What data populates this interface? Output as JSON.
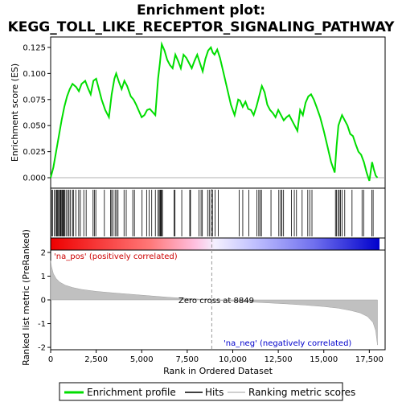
{
  "chart_data": {
    "type": "line",
    "title_line1": "Enrichment plot:",
    "title_line2": "KEGG_TOLL_LIKE_RECEPTOR_SIGNALING_PATHWAY",
    "es_panel": {
      "ylabel": "Enrichment score (ES)",
      "ylim": [
        -0.01,
        0.135
      ],
      "yticks": [
        0.0,
        0.025,
        0.05,
        0.075,
        0.1,
        0.125
      ],
      "ytick_labels": [
        "0.000",
        "0.025",
        "0.050",
        "0.075",
        "0.100",
        "0.125"
      ],
      "line_color": "#00dd00",
      "x": [
        0,
        150,
        300,
        450,
        600,
        750,
        900,
        1050,
        1200,
        1400,
        1550,
        1700,
        1900,
        2050,
        2200,
        2350,
        2500,
        2650,
        2800,
        3000,
        3200,
        3350,
        3500,
        3600,
        3750,
        3900,
        4050,
        4200,
        4400,
        4550,
        4700,
        4850,
        5000,
        5150,
        5300,
        5450,
        5600,
        5750,
        5900,
        6000,
        6100,
        6250,
        6400,
        6550,
        6700,
        6850,
        7000,
        7150,
        7300,
        7450,
        7600,
        7750,
        7900,
        8050,
        8200,
        8350,
        8500,
        8650,
        8800,
        8900,
        9000,
        9150,
        9300,
        9500,
        9700,
        9900,
        10100,
        10300,
        10400,
        10550,
        10700,
        10850,
        11000,
        11150,
        11300,
        11450,
        11600,
        11750,
        11900,
        12050,
        12200,
        12350,
        12500,
        12650,
        12800,
        12950,
        13100,
        13250,
        13400,
        13550,
        13700,
        13850,
        14000,
        14150,
        14300,
        14450,
        14600,
        14800,
        15000,
        15200,
        15400,
        15600,
        15700,
        15800,
        15900,
        16000,
        16150,
        16300,
        16450,
        16600,
        16750,
        16900,
        17050,
        17200,
        17350,
        17500,
        17650,
        17750,
        17850,
        17950
      ],
      "es": [
        0.0,
        0.01,
        0.025,
        0.04,
        0.055,
        0.068,
        0.078,
        0.085,
        0.09,
        0.087,
        0.083,
        0.09,
        0.093,
        0.086,
        0.08,
        0.093,
        0.095,
        0.085,
        0.075,
        0.065,
        0.058,
        0.08,
        0.095,
        0.1,
        0.092,
        0.085,
        0.093,
        0.088,
        0.078,
        0.075,
        0.07,
        0.064,
        0.058,
        0.06,
        0.065,
        0.066,
        0.063,
        0.06,
        0.095,
        0.11,
        0.128,
        0.122,
        0.113,
        0.108,
        0.105,
        0.118,
        0.112,
        0.105,
        0.118,
        0.115,
        0.11,
        0.105,
        0.112,
        0.118,
        0.11,
        0.102,
        0.114,
        0.122,
        0.125,
        0.12,
        0.118,
        0.123,
        0.115,
        0.1,
        0.085,
        0.07,
        0.06,
        0.075,
        0.074,
        0.068,
        0.073,
        0.066,
        0.065,
        0.06,
        0.068,
        0.078,
        0.088,
        0.082,
        0.07,
        0.065,
        0.062,
        0.058,
        0.065,
        0.06,
        0.055,
        0.058,
        0.06,
        0.055,
        0.05,
        0.045,
        0.065,
        0.06,
        0.072,
        0.078,
        0.08,
        0.075,
        0.068,
        0.058,
        0.045,
        0.03,
        0.015,
        0.005,
        0.03,
        0.05,
        0.055,
        0.06,
        0.055,
        0.05,
        0.042,
        0.04,
        0.032,
        0.025,
        0.022,
        0.015,
        0.005,
        -0.003,
        0.015,
        0.008,
        0.002,
        0.0
      ]
    },
    "hits": [
      60,
      100,
      200,
      280,
      330,
      380,
      430,
      480,
      530,
      560,
      610,
      650,
      690,
      730,
      780,
      850,
      950,
      1010,
      1090,
      1200,
      1250,
      1380,
      1540,
      1630,
      1820,
      1950,
      2330,
      2400,
      2480,
      2950,
      3290,
      3350,
      3430,
      3540,
      3620,
      3700,
      4030,
      4150,
      4510,
      4600,
      5020,
      5270,
      5410,
      5550,
      5750,
      5900,
      5960,
      6010,
      6050,
      6090,
      6140,
      6780,
      6830,
      7200,
      7640,
      7680,
      8150,
      8260,
      8330,
      8620,
      8710,
      8810,
      8890,
      9030,
      9210,
      10350,
      10550,
      10880,
      11320,
      11430,
      11500,
      11580,
      12100,
      12530,
      12630,
      12700,
      12790,
      13220,
      13380,
      13500,
      13810,
      14120,
      14230,
      14350,
      15640,
      15700,
      15780,
      15850,
      15920,
      16000,
      16150,
      16550,
      17100,
      17190,
      17640,
      17710
    ],
    "metric_panel": {
      "ylabel": "Ranked list metric (PreRanked)",
      "ylim": [
        -2.1,
        2.1
      ],
      "yticks": [
        -2,
        -1,
        0,
        1,
        2
      ],
      "ytick_labels": [
        "-2",
        "-1",
        "0",
        "1",
        "2"
      ],
      "x": [
        0,
        50,
        150,
        300,
        500,
        800,
        1200,
        1700,
        2500,
        3500,
        4500,
        5500,
        6500,
        7500,
        8849,
        10000,
        11000,
        12000,
        13000,
        14000,
        15000,
        15800,
        16500,
        17000,
        17400,
        17700,
        17850,
        17950
      ],
      "metric": [
        1.65,
        1.4,
        1.1,
        0.9,
        0.75,
        0.62,
        0.52,
        0.44,
        0.36,
        0.29,
        0.23,
        0.17,
        0.11,
        0.06,
        0.0,
        -0.05,
        -0.09,
        -0.13,
        -0.17,
        -0.22,
        -0.28,
        -0.35,
        -0.45,
        -0.55,
        -0.7,
        -0.95,
        -1.3,
        -1.9
      ],
      "fill_color": "#c0c0c0"
    },
    "xlabel": "Rank in Ordered Dataset",
    "xlim": [
      0,
      18000
    ],
    "xticks": [
      0,
      2500,
      5000,
      7500,
      10000,
      12500,
      15000,
      17500
    ],
    "xtick_labels": [
      "0",
      "2,500",
      "5,000",
      "7,500",
      "10,000",
      "12,500",
      "15,000",
      "17,500"
    ],
    "zero_cross": 8849,
    "annotations": {
      "pos_label": "'na_pos' (positively correlated)",
      "neg_label": "'na_neg' (negatively correlated)",
      "zero_label": "Zero cross at 8849"
    },
    "legend": {
      "items": [
        {
          "label": "Enrichment profile",
          "color": "#00dd00"
        },
        {
          "label": "Hits",
          "color": "#000000"
        },
        {
          "label": "Ranking metric scores",
          "color": "#c0c0c0"
        }
      ]
    },
    "colors": {
      "pos_text": "#cc0000",
      "neg_text": "#0000cc",
      "bar_red": "#ee0000",
      "bar_blue": "#0000cc"
    }
  }
}
